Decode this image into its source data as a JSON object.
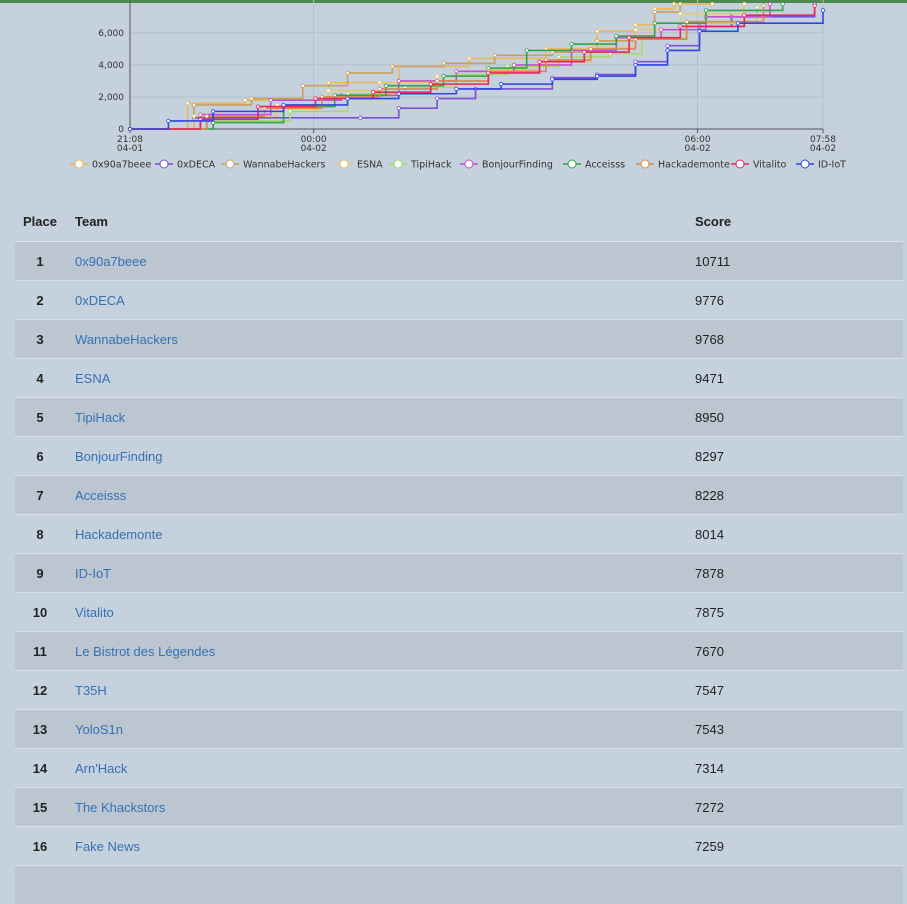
{
  "colors": {
    "background": "#c5d1dc",
    "row_alt": "#bbc6d1",
    "link": "#3571b5",
    "top_border": "#4e8a4e"
  },
  "chart_data": {
    "type": "line",
    "y_ticks": [
      "0",
      "2,000",
      "4,000",
      "6,000"
    ],
    "x_ticks": [
      {
        "time": "21:08",
        "date": "04-01"
      },
      {
        "time": "00:00",
        "date": "04-02"
      },
      {
        "time": "06:00",
        "date": "04-02"
      },
      {
        "time": "07:58",
        "date": "04-02"
      }
    ],
    "x_tick_hours": [
      0,
      2.87,
      8.87,
      10.83
    ],
    "ylim": [
      0,
      7800
    ],
    "series": [
      {
        "name": "0x90a7beee",
        "color": "#e8b85a",
        "x": [
          0,
          0.9,
          1.8,
          3.1,
          4.2,
          5.3,
          6.5,
          7.3,
          7.9,
          8.2,
          8.5,
          9.1
        ],
        "y": [
          0,
          1600,
          1800,
          2900,
          3900,
          4400,
          5000,
          6100,
          6500,
          7500,
          7800,
          7800
        ]
      },
      {
        "name": "0xDECA",
        "color": "#7c4fd6",
        "x": [
          0,
          1.0,
          3.6,
          4.2,
          4.8,
          5.4,
          6.6,
          7.3,
          7.9,
          8.4,
          8.9,
          9.4,
          10.7
        ],
        "y": [
          0,
          700,
          700,
          1300,
          1900,
          2500,
          3200,
          3400,
          4200,
          5200,
          6400,
          7000,
          7800
        ]
      },
      {
        "name": "WannabeHackers",
        "color": "#c9a05e",
        "x": [
          0,
          1.0,
          1.9,
          2.7,
          3.4,
          4.1,
          4.9,
          5.7,
          6.6,
          7.3,
          7.9,
          8.2,
          8.6
        ],
        "y": [
          0,
          1500,
          1900,
          2700,
          3500,
          3900,
          4100,
          4600,
          4800,
          5500,
          6200,
          7300,
          7800
        ]
      },
      {
        "name": "ESNA",
        "color": "#e3c878",
        "x": [
          0,
          1.0,
          2.3,
          3.1,
          3.9,
          4.8,
          5.6,
          6.4,
          7.2,
          7.9,
          8.6,
          9.6
        ],
        "y": [
          0,
          800,
          1500,
          2400,
          2900,
          3300,
          3700,
          4200,
          5100,
          6200,
          7200,
          7800
        ]
      },
      {
        "name": "TipiHack",
        "color": "#a6d96a",
        "x": [
          0,
          1.2,
          2.5,
          3.4,
          4.3,
          5.1,
          5.9,
          6.7,
          7.5,
          8.0,
          8.7,
          9.8
        ],
        "y": [
          0,
          500,
          1100,
          2200,
          2600,
          3400,
          3900,
          4500,
          4700,
          5700,
          6600,
          7600
        ]
      },
      {
        "name": "BonjourFinding",
        "color": "#c44fd0",
        "x": [
          0,
          1.1,
          2.2,
          3.3,
          4.2,
          5.1,
          6.0,
          6.9,
          7.6,
          8.3,
          9.0,
          10.0
        ],
        "y": [
          0,
          900,
          1800,
          2100,
          3000,
          3600,
          4000,
          4900,
          5700,
          6200,
          7000,
          7800
        ]
      },
      {
        "name": "Acceisss",
        "color": "#2ea34a",
        "x": [
          0,
          1.3,
          2.4,
          3.2,
          4.0,
          4.9,
          5.6,
          6.2,
          6.9,
          7.6,
          8.2,
          9.0,
          10.2
        ],
        "y": [
          0,
          400,
          1400,
          2100,
          2700,
          3300,
          3800,
          4900,
          5300,
          5800,
          6600,
          7400,
          7800
        ]
      },
      {
        "name": "Hackademonte",
        "color": "#d8884a",
        "x": [
          0,
          1.2,
          2.1,
          3.0,
          3.9,
          4.8,
          5.6,
          6.5,
          7.2,
          7.9,
          8.7,
          9.9
        ],
        "y": [
          0,
          800,
          1300,
          2000,
          2500,
          3000,
          3600,
          4300,
          5000,
          5600,
          6700,
          7700
        ]
      },
      {
        "name": "Vitalito",
        "color": "#e8265a",
        "x": [
          0,
          1.1,
          2.0,
          2.9,
          3.8,
          4.7,
          5.6,
          6.4,
          7.1,
          7.8,
          8.6,
          9.6,
          10.7
        ],
        "y": [
          0,
          600,
          1400,
          1900,
          2300,
          2800,
          3500,
          4200,
          4800,
          5700,
          6400,
          7100,
          7700
        ]
      },
      {
        "name": "ID-IoT",
        "color": "#2f46e0",
        "x": [
          0,
          0.6,
          1.3,
          2.4,
          3.4,
          4.2,
          5.1,
          5.8,
          6.6,
          7.3,
          7.9,
          8.4,
          8.9,
          9.5,
          10.83
        ],
        "y": [
          0,
          500,
          1100,
          1500,
          1900,
          2200,
          2500,
          2800,
          3100,
          3300,
          4000,
          4900,
          6100,
          6600,
          7400
        ]
      }
    ]
  },
  "table": {
    "headers": {
      "place": "Place",
      "team": "Team",
      "score": "Score"
    },
    "rows": [
      {
        "place": "1",
        "team": "0x90a7beee",
        "score": "10711"
      },
      {
        "place": "2",
        "team": "0xDECA",
        "score": "9776"
      },
      {
        "place": "3",
        "team": "WannabeHackers",
        "score": "9768"
      },
      {
        "place": "4",
        "team": "ESNA",
        "score": "9471"
      },
      {
        "place": "5",
        "team": "TipiHack",
        "score": "8950"
      },
      {
        "place": "6",
        "team": "BonjourFinding",
        "score": "8297"
      },
      {
        "place": "7",
        "team": "Acceisss",
        "score": "8228"
      },
      {
        "place": "8",
        "team": "Hackademonte",
        "score": "8014"
      },
      {
        "place": "9",
        "team": "ID-IoT",
        "score": "7878"
      },
      {
        "place": "10",
        "team": "Vitalito",
        "score": "7875"
      },
      {
        "place": "11",
        "team": "Le Bistrot des Légendes",
        "score": "7670"
      },
      {
        "place": "12",
        "team": "T35H",
        "score": "7547"
      },
      {
        "place": "13",
        "team": "YoloS1n",
        "score": "7543"
      },
      {
        "place": "14",
        "team": "Arn'Hack",
        "score": "7314"
      },
      {
        "place": "15",
        "team": "The Khackstors",
        "score": "7272"
      },
      {
        "place": "16",
        "team": "Fake News",
        "score": "7259"
      },
      {
        "place": "",
        "team": "",
        "score": ""
      }
    ]
  }
}
